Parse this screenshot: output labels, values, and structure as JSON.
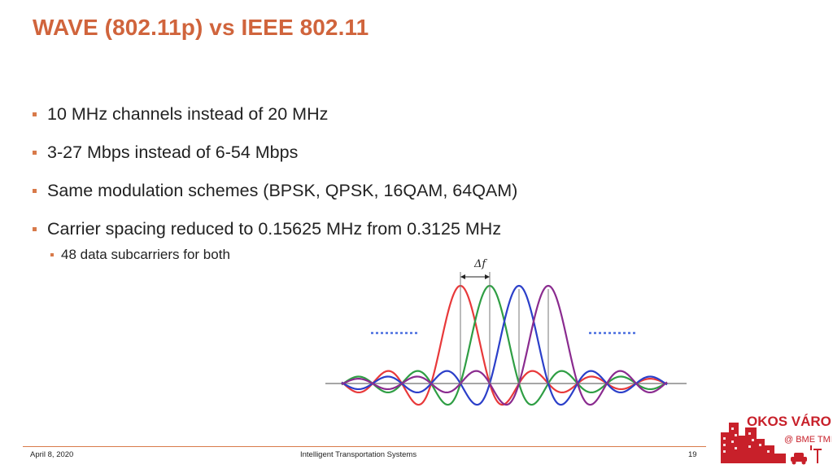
{
  "slide": {
    "title": "WAVE (802.11p) vs IEEE 802.11",
    "bullets": [
      "10 MHz channels instead of 20 MHz",
      "3-27 Mbps instead of 6-54 Mbps",
      "Same modulation schemes (BPSK, QPSK, 16QAM, 64QAM)",
      "Carrier spacing reduced to 0.15625 MHz from 0.3125 MHz"
    ],
    "sub_bullet": "48 data subcarriers for both"
  },
  "figure": {
    "delta_label": "Δf",
    "colors": {
      "red": "#e8393a",
      "green": "#2f9e44",
      "blue": "#2b3fc9",
      "purple": "#8a2b8f",
      "dots": "#4a6fe0",
      "axis": "#888888"
    }
  },
  "footer": {
    "date": "April 8, 2020",
    "center": "Intelligent Transportation Systems",
    "page": "19"
  },
  "logo": {
    "line1": "OKOS VÁROS",
    "line2": "@ BME TMIT"
  },
  "colors": {
    "accent": "#d0643c",
    "bullet": "#d87a4a"
  }
}
